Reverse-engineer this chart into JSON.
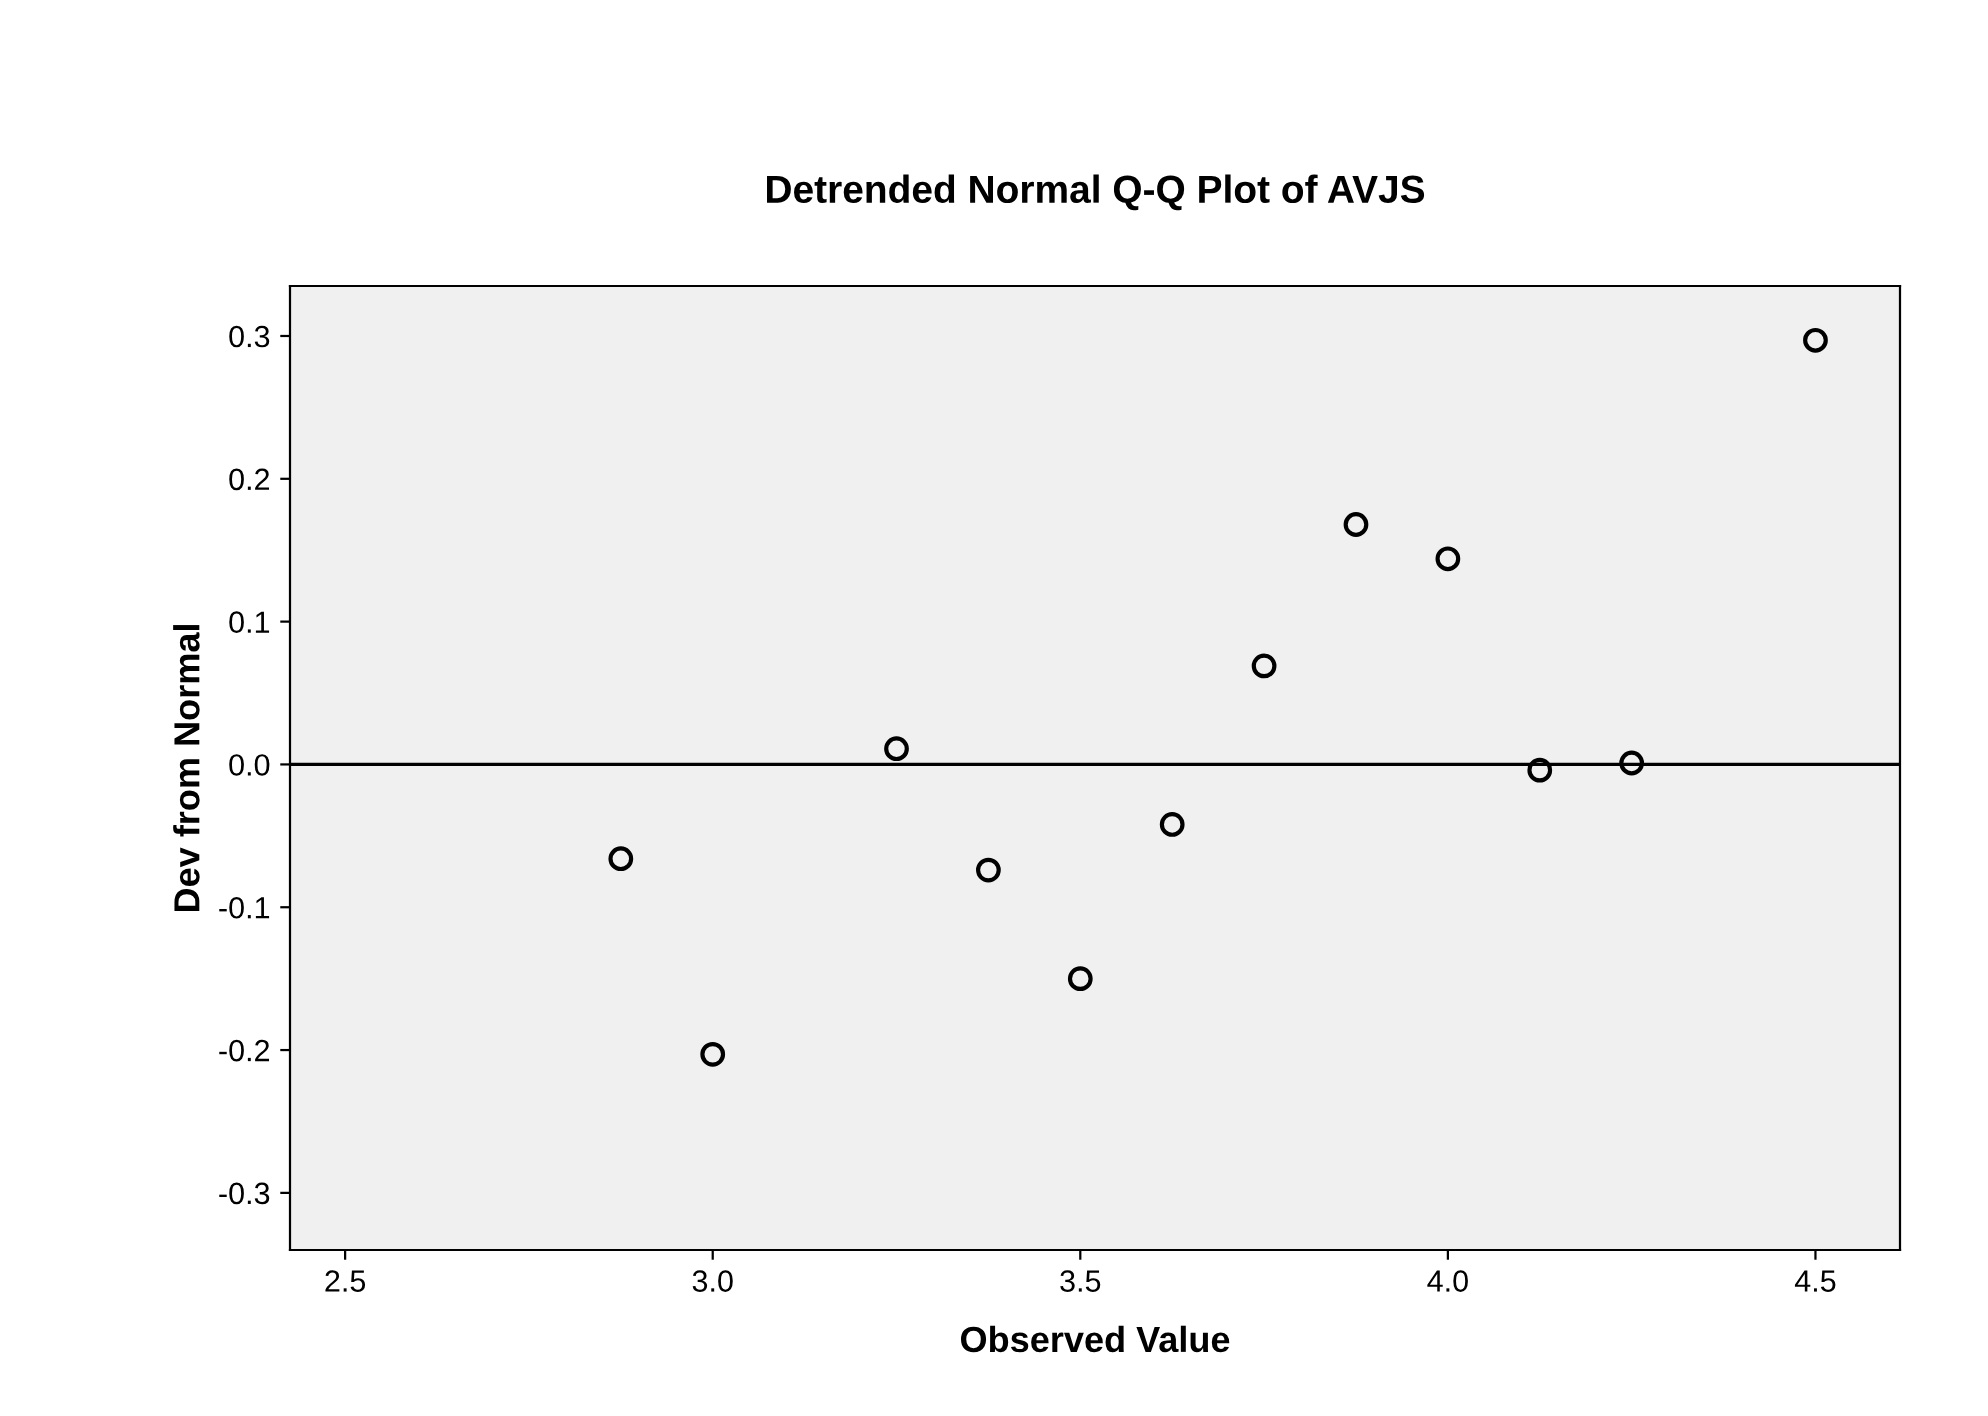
{
  "chart_data": {
    "type": "scatter",
    "title": "Detrended Normal Q-Q Plot of AVJS",
    "xlabel": "Observed Value",
    "ylabel": "Dev from Normal",
    "x": [
      2.875,
      3.0,
      3.25,
      3.375,
      3.5,
      3.625,
      3.75,
      3.875,
      4.0,
      4.125,
      4.25,
      4.5
    ],
    "values": [
      -0.066,
      -0.203,
      0.011,
      -0.074,
      -0.15,
      -0.042,
      0.069,
      0.168,
      0.144,
      -0.004,
      0.001,
      0.297
    ],
    "color": "#000000",
    "marker": "circle",
    "xlim": [
      2.425,
      4.615
    ],
    "xticks": [
      2.5,
      {
        "value": 3,
        "label": "3.0"
      },
      3.5,
      {
        "value": 4,
        "label": "4.0"
      },
      4.5
    ],
    "ylim": [
      -0.34,
      0.335
    ],
    "yticks": [
      -0.3,
      -0.2,
      -0.1,
      {
        "value": 0,
        "label": "0.0"
      },
      0.1,
      0.2,
      0.3
    ],
    "ref_lines": [
      {
        "axis": "y",
        "value": 0
      }
    ],
    "grid": false
  }
}
